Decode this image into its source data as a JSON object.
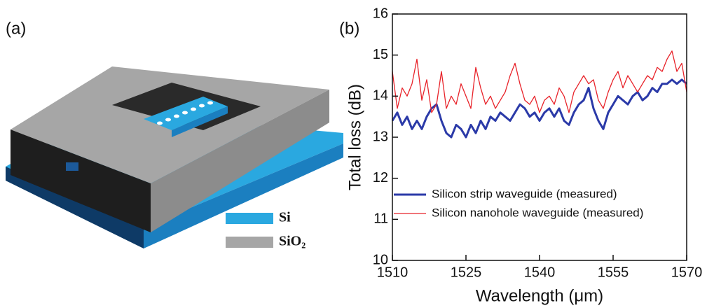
{
  "diagram": {
    "panel_label": "(a)",
    "legend": [
      {
        "label": "Si",
        "color": "#2aa8e0"
      },
      {
        "label": "SiO₂",
        "color": "#a6a6a6"
      }
    ]
  },
  "chart_data": {
    "type": "line",
    "panel_label": "(b)",
    "x_label": "Wavelength (μm)",
    "y_label": "Total loss (dB)",
    "x": [
      1510,
      1511,
      1512,
      1513,
      1514,
      1515,
      1516,
      1517,
      1518,
      1519,
      1520,
      1521,
      1522,
      1523,
      1524,
      1525,
      1526,
      1527,
      1528,
      1529,
      1530,
      1531,
      1532,
      1533,
      1534,
      1535,
      1536,
      1537,
      1538,
      1539,
      1540,
      1541,
      1542,
      1543,
      1544,
      1545,
      1546,
      1547,
      1548,
      1549,
      1550,
      1551,
      1552,
      1553,
      1554,
      1555,
      1556,
      1557,
      1558,
      1559,
      1560,
      1561,
      1562,
      1563,
      1564,
      1565,
      1566,
      1567,
      1568,
      1569,
      1570
    ],
    "series": [
      {
        "name": "Silicon strip waveguide (measured)",
        "color": "#2b3aa8",
        "width": 3,
        "values": [
          13.4,
          13.6,
          13.3,
          13.5,
          13.2,
          13.4,
          13.2,
          13.5,
          13.7,
          13.8,
          13.4,
          13.1,
          13.0,
          13.3,
          13.2,
          13.0,
          13.3,
          13.1,
          13.4,
          13.2,
          13.5,
          13.4,
          13.6,
          13.5,
          13.4,
          13.6,
          13.8,
          13.7,
          13.5,
          13.6,
          13.4,
          13.6,
          13.7,
          13.5,
          13.7,
          13.4,
          13.3,
          13.6,
          13.8,
          13.9,
          14.2,
          13.7,
          13.4,
          13.2,
          13.6,
          13.8,
          14.0,
          13.9,
          13.8,
          14.0,
          14.1,
          13.9,
          14.0,
          14.2,
          14.1,
          14.3,
          14.3,
          14.4,
          14.3,
          14.4,
          14.3
        ]
      },
      {
        "name": "Silicon nanohole waveguide (measured)",
        "color": "#e8232a",
        "width": 1.3,
        "values": [
          14.6,
          13.7,
          14.2,
          14.0,
          14.3,
          14.9,
          13.9,
          14.4,
          13.6,
          13.8,
          14.6,
          13.7,
          14.0,
          13.8,
          14.3,
          14.0,
          13.7,
          14.7,
          14.2,
          13.8,
          14.0,
          13.7,
          13.9,
          14.1,
          14.5,
          14.8,
          14.3,
          13.9,
          13.8,
          14.0,
          13.6,
          13.9,
          14.0,
          13.8,
          14.2,
          14.0,
          13.6,
          14.1,
          14.3,
          14.5,
          14.3,
          14.4,
          13.9,
          13.7,
          14.1,
          14.4,
          14.6,
          14.2,
          14.5,
          14.3,
          14.1,
          14.3,
          14.5,
          14.4,
          14.7,
          14.6,
          14.9,
          15.1,
          14.6,
          14.8,
          14.1
        ]
      }
    ],
    "xlim": [
      1510,
      1570
    ],
    "xticks": [
      1510,
      1525,
      1540,
      1555,
      1570
    ],
    "ylim": [
      10,
      16
    ],
    "yticks": [
      10,
      11,
      12,
      13,
      14,
      15,
      16
    ],
    "legend_loc": "center left"
  }
}
